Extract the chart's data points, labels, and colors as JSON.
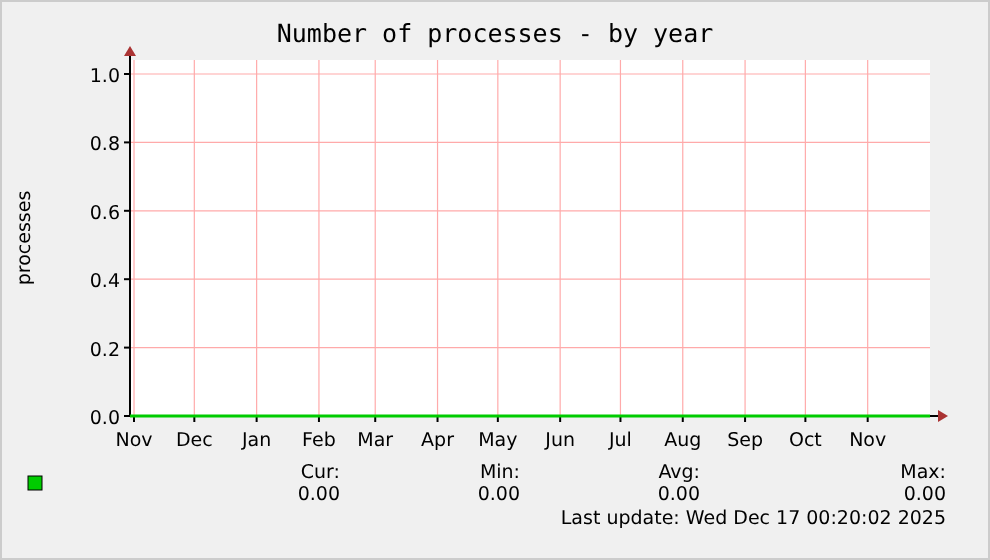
{
  "chart_data": {
    "type": "line",
    "title": "Number of processes - by year",
    "ylabel": "processes",
    "x": [
      "2024-10-30",
      "2025-01-01",
      "2025-03-01",
      "2025-05-01",
      "2025-07-01",
      "2025-09-01",
      "2025-11-01",
      "2025-12-02"
    ],
    "series": [
      {
        "color": "#00cc00",
        "values": [
          0,
          0,
          0,
          0,
          0,
          0,
          0,
          0
        ]
      }
    ],
    "xlim": [
      "2024-10-30",
      "2025-12-02"
    ],
    "xticks": [
      {
        "value": "2024-11-01",
        "label": "Nov"
      },
      {
        "value": "2024-12-01",
        "label": "Dec"
      },
      {
        "value": "2025-01-01",
        "label": "Jan"
      },
      {
        "value": "2025-02-01",
        "label": "Feb"
      },
      {
        "value": "2025-03-01",
        "label": "Mar"
      },
      {
        "value": "2025-04-01",
        "label": "Apr"
      },
      {
        "value": "2025-05-01",
        "label": "May"
      },
      {
        "value": "2025-06-01",
        "label": "Jun"
      },
      {
        "value": "2025-07-01",
        "label": "Jul"
      },
      {
        "value": "2025-08-01",
        "label": "Aug"
      },
      {
        "value": "2025-09-01",
        "label": "Sep"
      },
      {
        "value": "2025-10-01",
        "label": "Oct"
      },
      {
        "value": "2025-11-01",
        "label": "Nov"
      }
    ],
    "ylim": [
      0,
      1
    ],
    "yticks": [
      {
        "value": 0,
        "label": "0.0"
      },
      {
        "value": 0.2,
        "label": "0.2"
      },
      {
        "value": 0.4,
        "label": "0.4"
      },
      {
        "value": 0.6,
        "label": "0.6"
      },
      {
        "value": 0.8,
        "label": "0.8"
      },
      {
        "value": 1,
        "label": "1.0"
      }
    ],
    "grid": true,
    "annotations": [
      "Cur:",
      "0.00",
      "Min:",
      "0.00",
      "Avg:",
      "0.00",
      "Max:",
      "0.00",
      "Last update: Wed Dec 17 00:20:02 2025"
    ]
  }
}
